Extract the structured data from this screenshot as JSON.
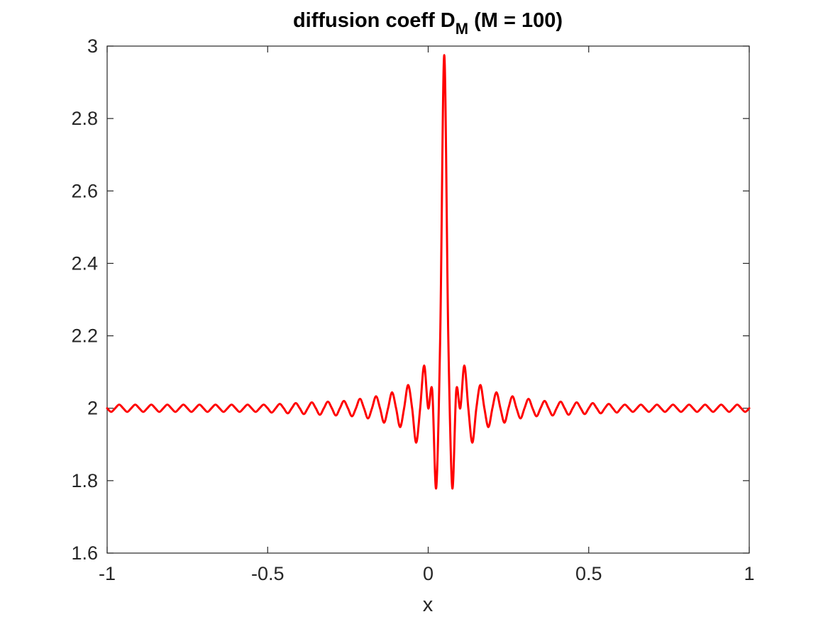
{
  "chart_data": {
    "type": "line",
    "title": "diffusion coeff D",
    "title_subscript": "M",
    "title_suffix": " (M = 100)",
    "xlabel": "x",
    "ylabel": "",
    "xlim": [
      -1,
      1
    ],
    "ylim": [
      1.6,
      3
    ],
    "xticks": [
      -1,
      -0.5,
      0,
      0.5,
      1
    ],
    "xtick_labels": [
      "-1",
      "-0.5",
      "0",
      "0.5",
      "1"
    ],
    "yticks": [
      1.6,
      1.8,
      2,
      2.2,
      2.4,
      2.6,
      2.8,
      3
    ],
    "ytick_labels": [
      "1.6",
      "1.8",
      "2",
      "2.2",
      "2.4",
      "2.6",
      "2.8",
      "3"
    ],
    "grid": false,
    "series": [
      {
        "color": "#ff0000",
        "x": [
          -1.0,
          -0.9875,
          -0.975,
          -0.9625,
          -0.95,
          -0.9375,
          -0.925,
          -0.9125,
          -0.9,
          -0.8875,
          -0.875,
          -0.8625,
          -0.85,
          -0.8375,
          -0.825,
          -0.8125,
          -0.8,
          -0.7875,
          -0.775,
          -0.7625,
          -0.75,
          -0.7375,
          -0.725,
          -0.7125,
          -0.7,
          -0.6875,
          -0.675,
          -0.6625,
          -0.65,
          -0.6375,
          -0.625,
          -0.6125,
          -0.6,
          -0.5875,
          -0.575,
          -0.5625,
          -0.55,
          -0.5375,
          -0.525,
          -0.5125,
          -0.5,
          -0.4875,
          -0.475,
          -0.4625,
          -0.45,
          -0.4375,
          -0.425,
          -0.4125,
          -0.4,
          -0.3875,
          -0.375,
          -0.3625,
          -0.35,
          -0.3375,
          -0.325,
          -0.3125,
          -0.3,
          -0.2875,
          -0.275,
          -0.2625,
          -0.25,
          -0.2375,
          -0.225,
          -0.2125,
          -0.2,
          -0.1875,
          -0.175,
          -0.1625,
          -0.15,
          -0.1375,
          -0.125,
          -0.1125,
          -0.1,
          -0.0875,
          -0.075,
          -0.0625,
          -0.05,
          -0.0375,
          -0.025,
          -0.0125,
          0.0,
          0.0125,
          0.025,
          0.0375,
          0.05,
          0.0625,
          0.075,
          0.0875,
          0.1,
          0.1125,
          0.125,
          0.1375,
          0.15,
          0.1625,
          0.175,
          0.1875,
          0.2,
          0.2125,
          0.225,
          0.2375,
          0.25,
          0.2625,
          0.275,
          0.2875,
          0.3,
          0.3125,
          0.325,
          0.3375,
          0.35,
          0.3625,
          0.375,
          0.3875,
          0.4,
          0.4125,
          0.425,
          0.4375,
          0.45,
          0.4625,
          0.475,
          0.4875,
          0.5,
          0.5125,
          0.525,
          0.5375,
          0.55,
          0.5625,
          0.575,
          0.5875,
          0.6,
          0.6125,
          0.625,
          0.6375,
          0.65,
          0.6625,
          0.675,
          0.6875,
          0.7,
          0.7125,
          0.725,
          0.7375,
          0.75,
          0.7625,
          0.775,
          0.7875,
          0.8,
          0.8125,
          0.825,
          0.8375,
          0.85,
          0.8625,
          0.875,
          0.8875,
          0.9,
          0.9125,
          0.925,
          0.9375,
          0.95,
          0.9625,
          0.975,
          0.9875,
          1.0
        ],
        "y": [
          2.0,
          1.99,
          2.0,
          2.01,
          2.0,
          1.99,
          2.0,
          2.01,
          2.0,
          1.99,
          2.0,
          2.01,
          2.0,
          1.99,
          2.0,
          2.01,
          2.0,
          1.99,
          2.0,
          2.01,
          2.0,
          1.99,
          2.0,
          2.01,
          2.0,
          1.99,
          2.0,
          2.01,
          2.0,
          1.99,
          2.0,
          2.01,
          2.0,
          1.99,
          2.0,
          2.01,
          2.0,
          1.99,
          2.0,
          2.01,
          2.0,
          1.988,
          2.0,
          2.012,
          2.0,
          1.986,
          2.0,
          2.014,
          2.0,
          1.984,
          2.0,
          2.016,
          2.0,
          1.982,
          2.0,
          2.018,
          2.0,
          1.98,
          2.0,
          2.02,
          2.0,
          1.978,
          2.0,
          2.026,
          2.0,
          1.972,
          2.0,
          2.033,
          2.0,
          1.96,
          2.0,
          2.044,
          2.0,
          1.948,
          2.0,
          2.064,
          2.0,
          1.905,
          2.0,
          2.118,
          2.0,
          2.05,
          1.78,
          2.2,
          2.975,
          2.2,
          1.78,
          2.05,
          2.0,
          2.118,
          2.0,
          1.905,
          2.0,
          2.064,
          2.0,
          1.948,
          2.0,
          2.044,
          2.0,
          1.96,
          2.0,
          2.033,
          2.0,
          1.972,
          2.0,
          2.026,
          2.0,
          1.978,
          2.0,
          2.02,
          2.0,
          1.98,
          2.0,
          2.018,
          2.0,
          1.982,
          2.0,
          2.016,
          2.0,
          1.984,
          2.0,
          2.014,
          2.0,
          1.986,
          2.0,
          2.012,
          2.0,
          1.988,
          2.0,
          2.01,
          2.0,
          1.99,
          2.0,
          2.01,
          2.0,
          1.99,
          2.0,
          2.01,
          2.0,
          1.99,
          2.0,
          2.01,
          2.0,
          1.99,
          2.0,
          2.01,
          2.0,
          1.99,
          2.0,
          2.01,
          2.0,
          1.99,
          2.0,
          2.01,
          2.0,
          1.99,
          2.0,
          2.01,
          2.0,
          1.99,
          2.0
        ]
      }
    ]
  }
}
